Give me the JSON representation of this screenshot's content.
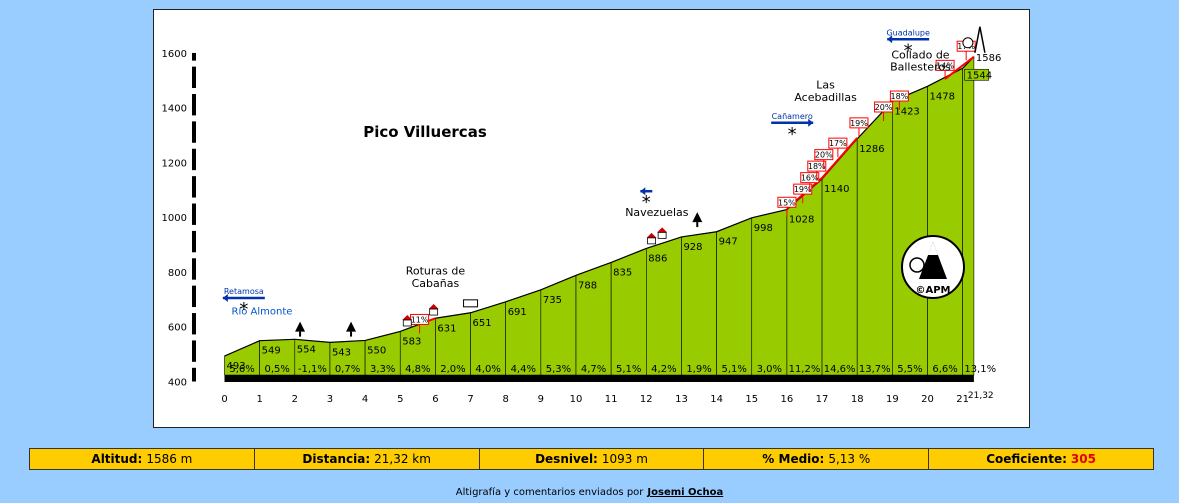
{
  "chart_data": {
    "type": "area",
    "title": "Pico Villuercas",
    "ylim": [
      400,
      1600
    ],
    "yticks": [
      400,
      600,
      800,
      1000,
      1200,
      1400,
      1600
    ],
    "xlim": [
      0,
      21.32
    ],
    "xticks": [
      "0",
      "1",
      "2",
      "3",
      "4",
      "5",
      "6",
      "7",
      "8",
      "9",
      "10",
      "11",
      "12",
      "13",
      "14",
      "15",
      "16",
      "17",
      "18",
      "19",
      "20",
      "21"
    ],
    "xend_label": "21,32",
    "km_points": [
      {
        "x": 0,
        "y": 493,
        "label": "493"
      },
      {
        "x": 1,
        "y": 549,
        "label": "549"
      },
      {
        "x": 2,
        "y": 554,
        "label": "554"
      },
      {
        "x": 3,
        "y": 543,
        "label": "543"
      },
      {
        "x": 4,
        "y": 550,
        "label": "550"
      },
      {
        "x": 5,
        "y": 583,
        "label": "583"
      },
      {
        "x": 6,
        "y": 631,
        "label": "631"
      },
      {
        "x": 7,
        "y": 651,
        "label": "651"
      },
      {
        "x": 8,
        "y": 691,
        "label": "691"
      },
      {
        "x": 9,
        "y": 735,
        "label": "735"
      },
      {
        "x": 10,
        "y": 788,
        "label": "788"
      },
      {
        "x": 11,
        "y": 835,
        "label": "835"
      },
      {
        "x": 12,
        "y": 886,
        "label": "886"
      },
      {
        "x": 13,
        "y": 928,
        "label": "928"
      },
      {
        "x": 14,
        "y": 947,
        "label": "947"
      },
      {
        "x": 15,
        "y": 998,
        "label": "998"
      },
      {
        "x": 16,
        "y": 1028,
        "label": "1028"
      },
      {
        "x": 17,
        "y": 1140,
        "label": "1140"
      },
      {
        "x": 18,
        "y": 1286,
        "label": "1286"
      },
      {
        "x": 19,
        "y": 1423,
        "label": "1423"
      },
      {
        "x": 20,
        "y": 1478,
        "label": "1478"
      },
      {
        "x": 21,
        "y": 1544,
        "label": "1544"
      },
      {
        "x": 21.32,
        "y": 1586,
        "label": "1586"
      }
    ],
    "gradients": [
      "5,6%",
      "0,5%",
      "-1,1%",
      "0,7%",
      "3,3%",
      "4,8%",
      "2,0%",
      "4,0%",
      "4,4%",
      "5,3%",
      "4,7%",
      "5,1%",
      "4,2%",
      "1,9%",
      "5,1%",
      "3,0%",
      "11,2%",
      "14,6%",
      "13,7%",
      "5,5%",
      "6,6%",
      "13,1%"
    ],
    "ramp_labels": [
      {
        "x": 5.55,
        "y": 612,
        "label": "11%"
      },
      {
        "x": 16.0,
        "y": 1040,
        "label": "15%"
      },
      {
        "x": 16.45,
        "y": 1088,
        "label": "19%"
      },
      {
        "x": 16.65,
        "y": 1130,
        "label": "16%"
      },
      {
        "x": 16.85,
        "y": 1172,
        "label": "18%"
      },
      {
        "x": 17.05,
        "y": 1214,
        "label": "20%"
      },
      {
        "x": 17.45,
        "y": 1256,
        "label": "17%"
      },
      {
        "x": 18.05,
        "y": 1330,
        "label": "19%"
      },
      {
        "x": 18.75,
        "y": 1388,
        "label": "20%"
      },
      {
        "x": 19.2,
        "y": 1428,
        "label": "18%"
      },
      {
        "x": 20.5,
        "y": 1540,
        "label": "14%"
      },
      {
        "x": 21.1,
        "y": 1610,
        "label": "17%"
      }
    ],
    "places": [
      {
        "name": "Río Almonte",
        "x": 0.2,
        "y": 645
      },
      {
        "name": "Roturas de",
        "x": 6.0,
        "y": 790
      },
      {
        "name": "Cabañas",
        "x": 6.0,
        "y": 745
      },
      {
        "name": "Navezuelas",
        "x": 12.3,
        "y": 1005
      },
      {
        "name": "Las",
        "x": 17.1,
        "y": 1470
      },
      {
        "name": "Acebadillas",
        "x": 17.1,
        "y": 1425
      },
      {
        "name": "Collado de",
        "x": 19.8,
        "y": 1580
      },
      {
        "name": "Ballesteros",
        "x": 19.8,
        "y": 1535
      }
    ],
    "junctions": [
      {
        "name": "Retamosa",
        "x": 0.55,
        "y": 705,
        "dir": "left"
      },
      {
        "name": "Cañamero",
        "x": 16.15,
        "y": 1345,
        "dir": "right"
      },
      {
        "name": "Guadalupe",
        "x": 19.45,
        "y": 1650,
        "dir": "left"
      },
      {
        "name": "",
        "x": 12.0,
        "y": 1095,
        "dir": "left"
      }
    ]
  },
  "stats": {
    "altitud_label": "Altitud:",
    "altitud_value": "1586 m",
    "distancia_label": "Distancia:",
    "distancia_value": "21,32 km",
    "desnivel_label": "Desnivel:",
    "desnivel_value": "1093 m",
    "medio_label": "% Medio:",
    "medio_value": "5,13 %",
    "coef_label": "Coeficiente:",
    "coef_value": "305"
  },
  "credit": {
    "text": "Altigrafía y comentarios enviados por",
    "author": "Josemi Ochoa"
  },
  "logo": {
    "text": "©APM"
  },
  "colors": {
    "fill": "#99cc00",
    "ramp": "#ff0000",
    "stats_bg": "#ffcc00",
    "page_bg": "#99ccff"
  }
}
